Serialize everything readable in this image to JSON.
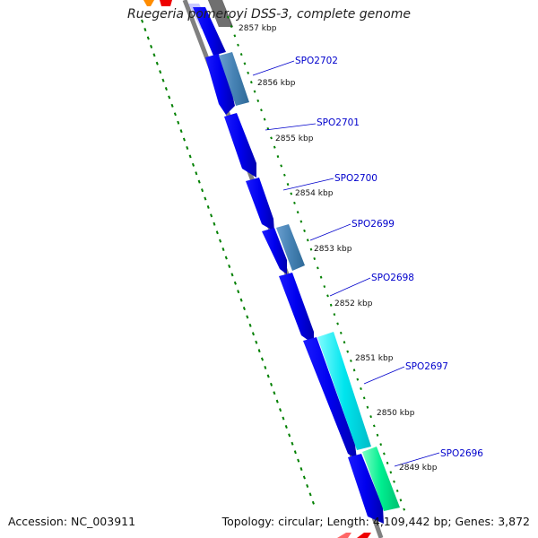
{
  "title": "Ruegeria pomeroyi DSS-3, complete genome",
  "footer": {
    "accession": "Accession: NC_003911",
    "summary": "Topology: circular; Length: 4,109,442 bp; Genes: 3,872"
  },
  "ticks": [
    {
      "label": "2857 kbp"
    },
    {
      "label": "2856 kbp"
    },
    {
      "label": "2855 kbp"
    },
    {
      "label": "2854 kbp"
    },
    {
      "label": "2853 kbp"
    },
    {
      "label": "2852 kbp"
    },
    {
      "label": "2851 kbp"
    },
    {
      "label": "2850 kbp"
    },
    {
      "label": "2849 kbp"
    }
  ],
  "gene_labels": [
    {
      "name": "SPO2702"
    },
    {
      "name": "SPO2701"
    },
    {
      "name": "SPO2700"
    },
    {
      "name": "SPO2699"
    },
    {
      "name": "SPO2698"
    },
    {
      "name": "SPO2697"
    },
    {
      "name": "SPO2696"
    }
  ],
  "colors": {
    "backbone": "#808080",
    "gene_dark": "#0000ee",
    "gene_steel": "#4682b4",
    "gene_cyan": "#00e5ee",
    "gene_mint": "#00ee90",
    "gc_track": "#008000",
    "label_text": "#0000cc"
  }
}
